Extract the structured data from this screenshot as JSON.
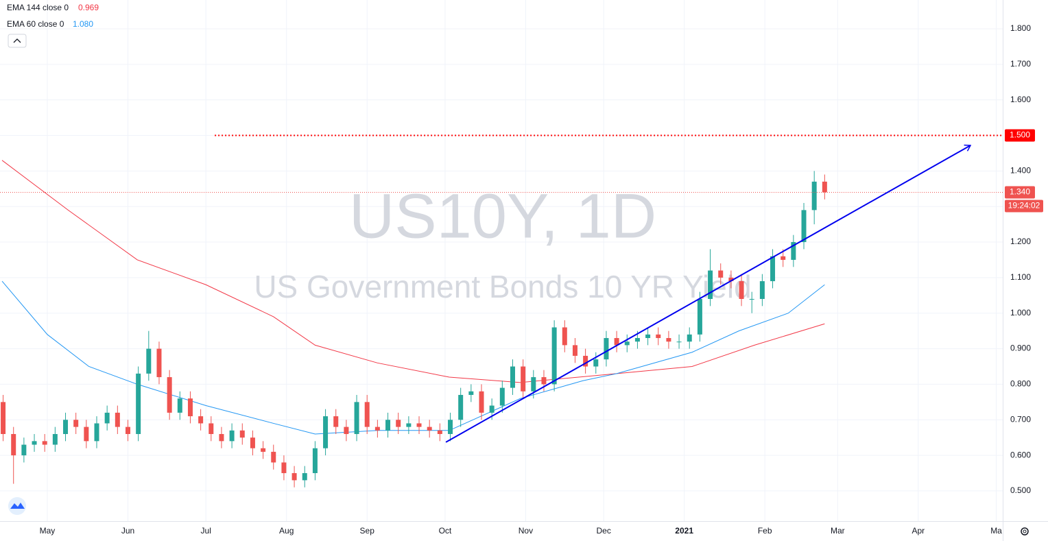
{
  "chart_data": {
    "type": "candlestick",
    "watermark_title": "US10Y, 1D",
    "watermark_subtitle": "US Government Bonds 10 YR Yield",
    "up_color": "#26a69a",
    "down_color": "#ef5350",
    "x": [
      13,
      17,
      21,
      25,
      29,
      33,
      37,
      41,
      45,
      49,
      53,
      57,
      61,
      65,
      69,
      73,
      77,
      81,
      85,
      89,
      93,
      97,
      101,
      105,
      109,
      113,
      117,
      121,
      125,
      129,
      133,
      137,
      141,
      145,
      149,
      153,
      157,
      161,
      165,
      169,
      173,
      177,
      181,
      185,
      189,
      193,
      197,
      201,
      205,
      209,
      213,
      217,
      221,
      225,
      229,
      233,
      237,
      241,
      245,
      249,
      253,
      257,
      261,
      265,
      269,
      273,
      277,
      281,
      285,
      289,
      293,
      297,
      301,
      305,
      309,
      313,
      317,
      321,
      325,
      329
    ],
    "open": [
      0.75,
      0.66,
      0.6,
      0.63,
      0.64,
      0.63,
      0.66,
      0.7,
      0.68,
      0.64,
      0.69,
      0.72,
      0.68,
      0.66,
      0.83,
      0.9,
      0.82,
      0.72,
      0.76,
      0.71,
      0.69,
      0.66,
      0.64,
      0.67,
      0.65,
      0.62,
      0.61,
      0.58,
      0.55,
      0.53,
      0.55,
      0.62,
      0.71,
      0.68,
      0.66,
      0.75,
      0.68,
      0.67,
      0.7,
      0.68,
      0.69,
      0.68,
      0.67,
      0.66,
      0.7,
      0.77,
      0.78,
      0.72,
      0.74,
      0.79,
      0.85,
      0.78,
      0.82,
      0.8,
      0.96,
      0.91,
      0.88,
      0.85,
      0.87,
      0.93,
      0.91,
      0.92,
      0.93,
      0.94,
      0.93,
      0.92,
      0.92,
      0.94,
      1.04,
      1.12,
      1.1,
      1.09,
      1.04,
      1.04,
      1.09,
      1.16,
      1.15,
      1.2,
      1.29,
      1.37
    ],
    "high": [
      0.77,
      0.68,
      0.65,
      0.66,
      0.66,
      0.68,
      0.72,
      0.72,
      0.7,
      0.71,
      0.74,
      0.74,
      0.7,
      0.85,
      0.95,
      0.92,
      0.84,
      0.78,
      0.78,
      0.73,
      0.71,
      0.68,
      0.69,
      0.69,
      0.67,
      0.64,
      0.63,
      0.6,
      0.57,
      0.57,
      0.64,
      0.73,
      0.73,
      0.7,
      0.77,
      0.77,
      0.7,
      0.72,
      0.72,
      0.71,
      0.71,
      0.7,
      0.69,
      0.72,
      0.79,
      0.8,
      0.8,
      0.76,
      0.81,
      0.87,
      0.87,
      0.84,
      0.84,
      0.98,
      0.98,
      0.93,
      0.9,
      0.89,
      0.95,
      0.95,
      0.94,
      0.95,
      0.96,
      0.96,
      0.95,
      0.94,
      0.96,
      1.06,
      1.18,
      1.14,
      1.12,
      1.11,
      1.06,
      1.11,
      1.18,
      1.18,
      1.22,
      1.31,
      1.4,
      1.39
    ],
    "low": [
      0.64,
      0.52,
      0.58,
      0.61,
      0.61,
      0.61,
      0.64,
      0.66,
      0.62,
      0.62,
      0.67,
      0.66,
      0.64,
      0.64,
      0.81,
      0.8,
      0.7,
      0.7,
      0.69,
      0.67,
      0.64,
      0.62,
      0.62,
      0.63,
      0.6,
      0.59,
      0.56,
      0.53,
      0.51,
      0.51,
      0.53,
      0.6,
      0.66,
      0.64,
      0.64,
      0.66,
      0.65,
      0.65,
      0.66,
      0.66,
      0.66,
      0.65,
      0.64,
      0.64,
      0.68,
      0.75,
      0.7,
      0.7,
      0.72,
      0.77,
      0.76,
      0.76,
      0.78,
      0.78,
      0.89,
      0.86,
      0.83,
      0.83,
      0.85,
      0.89,
      0.89,
      0.9,
      0.91,
      0.91,
      0.9,
      0.9,
      0.9,
      0.92,
      1.02,
      1.08,
      1.07,
      1.02,
      1.0,
      1.02,
      1.07,
      1.13,
      1.13,
      1.18,
      1.25,
      1.32
    ],
    "close": [
      0.66,
      0.6,
      0.63,
      0.64,
      0.63,
      0.66,
      0.7,
      0.68,
      0.64,
      0.69,
      0.72,
      0.68,
      0.66,
      0.83,
      0.9,
      0.82,
      0.72,
      0.76,
      0.71,
      0.69,
      0.66,
      0.64,
      0.67,
      0.65,
      0.62,
      0.61,
      0.58,
      0.55,
      0.53,
      0.55,
      0.62,
      0.71,
      0.68,
      0.66,
      0.75,
      0.68,
      0.67,
      0.7,
      0.68,
      0.69,
      0.68,
      0.67,
      0.66,
      0.7,
      0.77,
      0.78,
      0.72,
      0.74,
      0.79,
      0.85,
      0.78,
      0.82,
      0.8,
      0.96,
      0.91,
      0.88,
      0.85,
      0.87,
      0.93,
      0.91,
      0.92,
      0.93,
      0.94,
      0.93,
      0.92,
      0.92,
      0.94,
      1.04,
      1.12,
      1.1,
      1.09,
      1.04,
      1.04,
      1.09,
      1.16,
      1.15,
      1.2,
      1.29,
      1.37,
      1.34
    ],
    "series": [
      {
        "name": "EMA 144 close 0",
        "last_label": "0.969",
        "color": "#f23645",
        "x": [
          12.6,
          38,
          64.6,
          91,
          117,
          133,
          157,
          184.6,
          212,
          249,
          278,
          302,
          329
        ],
        "values": [
          1.43,
          1.29,
          1.15,
          1.08,
          0.99,
          0.91,
          0.86,
          0.82,
          0.805,
          0.83,
          0.85,
          0.91,
          0.97
        ]
      },
      {
        "name": "EMA 60 close 0",
        "last_label": "1.080",
        "color": "#2196f3",
        "x": [
          12.6,
          30,
          46,
          64.6,
          91,
          117,
          133,
          157,
          184.6,
          212,
          236,
          249,
          278,
          296,
          315,
          329
        ],
        "values": [
          1.09,
          0.94,
          0.85,
          0.8,
          0.74,
          0.69,
          0.66,
          0.67,
          0.67,
          0.76,
          0.81,
          0.83,
          0.89,
          0.95,
          1.0,
          1.08
        ]
      }
    ],
    "trend_line": {
      "color": "#0000ee",
      "x": [
        183.3,
        385.1
      ],
      "y": [
        0.637,
        1.472
      ]
    },
    "price_lines": [
      {
        "value": 1.5,
        "label": "1.500",
        "color": "#ff0000",
        "start_x": 94.4
      },
      {
        "value": 1.34,
        "label": "1.340",
        "color": "#ef5350",
        "start_x": 11.8,
        "countdown": "19:24:02"
      }
    ],
    "xlim": [
      11.8,
      397.5
    ],
    "ylim": [
      0.415,
      1.881
    ],
    "xticks": [
      {
        "value": 30,
        "label": "May"
      },
      {
        "value": 61,
        "label": "Jun"
      },
      {
        "value": 91,
        "label": "Jul"
      },
      {
        "value": 122,
        "label": "Aug"
      },
      {
        "value": 153,
        "label": "Sep"
      },
      {
        "value": 183,
        "label": "Oct"
      },
      {
        "value": 214,
        "label": "Nov"
      },
      {
        "value": 244,
        "label": "Dec"
      },
      {
        "value": 275,
        "label": "2021"
      },
      {
        "value": 306,
        "label": "Feb"
      },
      {
        "value": 334,
        "label": "Mar"
      },
      {
        "value": 365,
        "label": "Apr"
      },
      {
        "value": 395,
        "label": "Ma"
      }
    ],
    "yticks": [
      {
        "value": 0.5,
        "label": "0.500"
      },
      {
        "value": 0.6,
        "label": "0.600"
      },
      {
        "value": 0.7,
        "label": "0.700"
      },
      {
        "value": 0.8,
        "label": "0.800"
      },
      {
        "value": 0.9,
        "label": "0.900"
      },
      {
        "value": 1.0,
        "label": "1.000"
      },
      {
        "value": 1.1,
        "label": "1.100"
      },
      {
        "value": 1.2,
        "label": "1.200"
      },
      {
        "value": 1.3,
        "label": "1.300"
      },
      {
        "value": 1.4,
        "label": "1.400"
      },
      {
        "value": 1.5,
        "label": "1.500"
      },
      {
        "value": 1.6,
        "label": "1.600"
      },
      {
        "value": 1.7,
        "label": "1.700"
      },
      {
        "value": 1.8,
        "label": "1.800"
      }
    ],
    "grid": true
  }
}
